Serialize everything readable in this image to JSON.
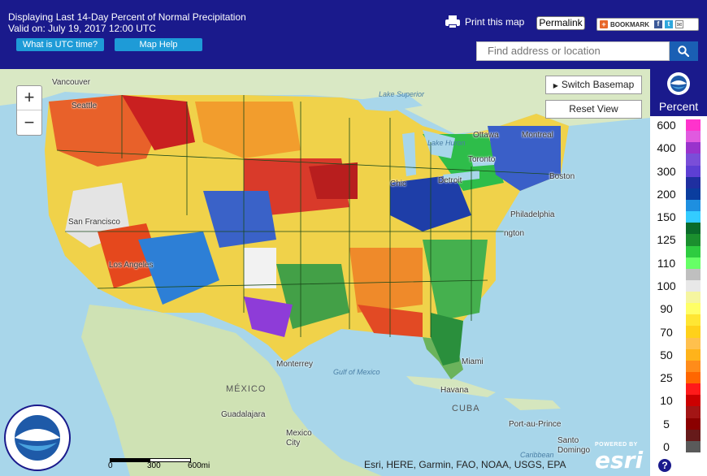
{
  "header": {
    "title": "Displaying Last 14-Day Percent of Normal Precipitation",
    "valid": "Valid on: July 19, 2017 12:00 UTC",
    "utc_button": "What is UTC time?",
    "help_button": "Map Help",
    "print_label": "Print this map",
    "permalink_label": "Permalink",
    "bookmark_label": "BOOKMARK",
    "search_placeholder": "Find address or location"
  },
  "map": {
    "zoom_in": "+",
    "zoom_out": "−",
    "switch_basemap": "Switch Basemap",
    "reset_view": "Reset View",
    "attribution": "Esri, HERE, Garmin, FAO, NOAA, USGS, EPA",
    "esri_powered": "POWERED BY",
    "esri_logo": "esri",
    "scale": {
      "labels": [
        "0",
        "300",
        "600mi"
      ]
    },
    "places": {
      "vancouver": "Vancouver",
      "seattle": "Seattle",
      "san_francisco": "San Francisco",
      "los_angeles": "Los Angeles",
      "ottawa": "Ottawa",
      "montreal": "Montreal",
      "toronto": "Toronto",
      "detroit": "Detroit",
      "chicago": "Chic",
      "boston": "Boston",
      "philadelphia": "Philadelphia",
      "washington": "ngton",
      "miami": "Miami",
      "havana": "Havana",
      "monterrey": "Monterrey",
      "guadalajara": "Guadalajara",
      "mexico_city": "Mexico City",
      "port_au_prince": "Port-au-Prince",
      "santo_domingo": "Santo Domingo",
      "cuba": "CUBA",
      "mexico": "MÉXICO"
    },
    "water": {
      "lake_superior": "Lake Superior",
      "lake_huron": "Lake Huron",
      "gulf_of_mexico": "Gulf of Mexico",
      "caribbean": "Caribbean"
    }
  },
  "legend": {
    "unit": "Percent",
    "help": "?",
    "classes": [
      {
        "label": "600",
        "color": "#ff33cc"
      },
      {
        "label": "",
        "color": "#e05adf"
      },
      {
        "label": "400",
        "color": "#9933cc"
      },
      {
        "label": "",
        "color": "#7a4ed8"
      },
      {
        "label": "300",
        "color": "#5d3fd3"
      },
      {
        "label": "",
        "color": "#1f2fa0"
      },
      {
        "label": "200",
        "color": "#0a3d9e"
      },
      {
        "label": "",
        "color": "#1e8fe0"
      },
      {
        "label": "150",
        "color": "#33ccff"
      },
      {
        "label": "",
        "color": "#0a6b2a"
      },
      {
        "label": "125",
        "color": "#1b8f2e"
      },
      {
        "label": "",
        "color": "#2ecc40"
      },
      {
        "label": "110",
        "color": "#66ff66"
      },
      {
        "label": "",
        "color": "#bfbfbf"
      },
      {
        "label": "100",
        "color": "#e8e8e8"
      },
      {
        "label": "",
        "color": "#f5f5a0"
      },
      {
        "label": "90",
        "color": "#ffff66"
      },
      {
        "label": "",
        "color": "#ffe633"
      },
      {
        "label": "70",
        "color": "#ffd11a"
      },
      {
        "label": "",
        "color": "#ffc04d"
      },
      {
        "label": "50",
        "color": "#ffb31a"
      },
      {
        "label": "",
        "color": "#ff8c1a"
      },
      {
        "label": "25",
        "color": "#ff6600"
      },
      {
        "label": "",
        "color": "#ff1a1a"
      },
      {
        "label": "10",
        "color": "#cc0000"
      },
      {
        "label": "",
        "color": "#a31515"
      },
      {
        "label": "5",
        "color": "#8b0000"
      },
      {
        "label": "",
        "color": "#661a1a"
      },
      {
        "label": "0",
        "color": "#5a5a5a"
      }
    ]
  }
}
